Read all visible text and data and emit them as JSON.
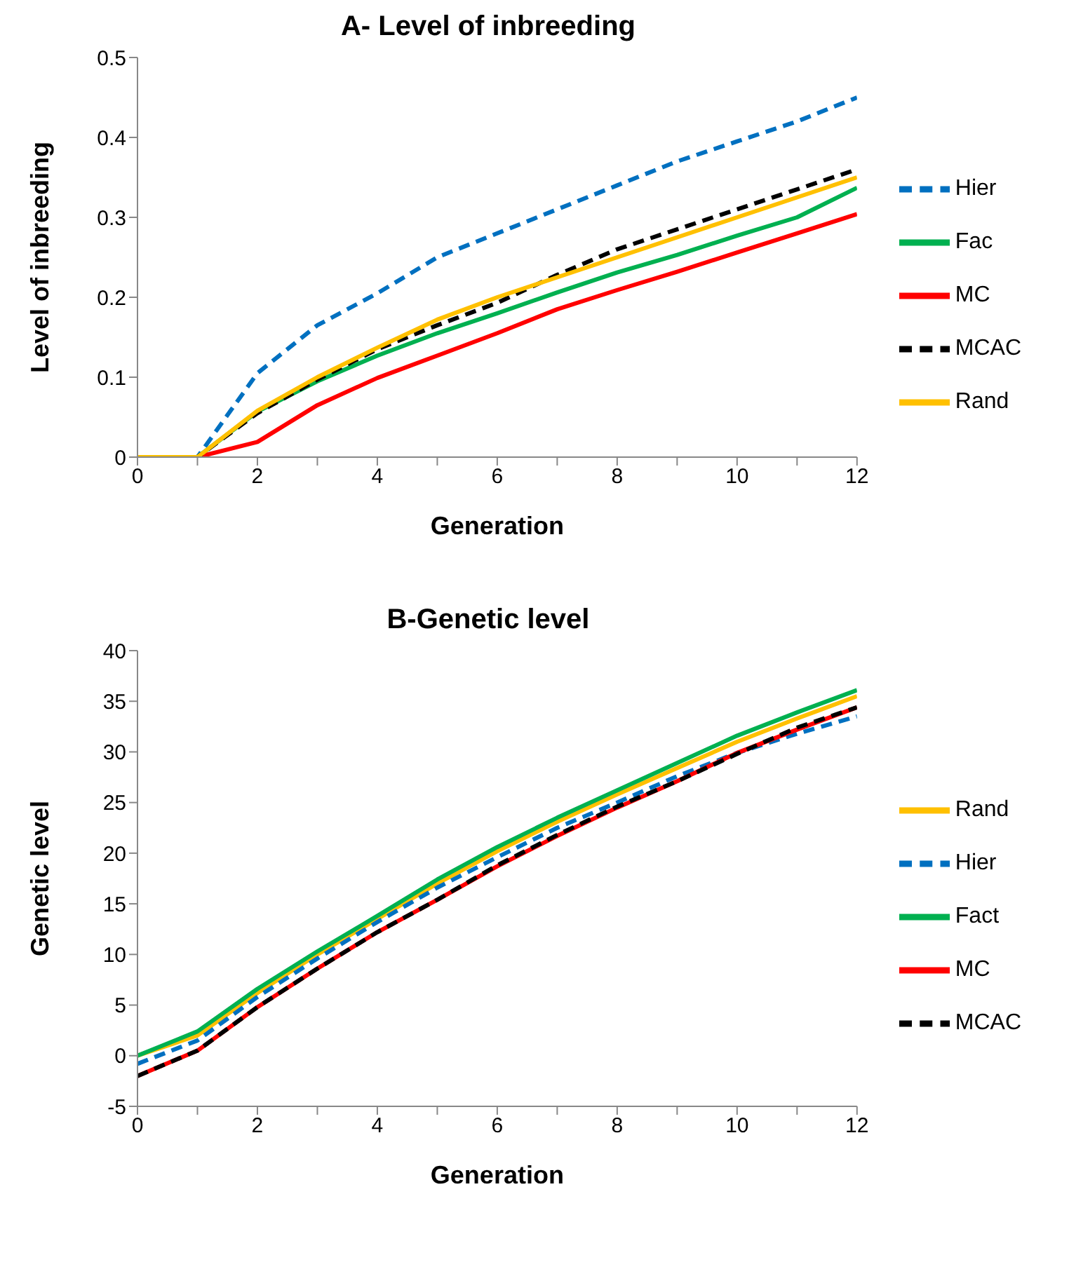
{
  "chart_data": [
    {
      "type": "line",
      "title": "A- Level of inbreeding",
      "xlabel": "Generation",
      "ylabel": "Level of inbreeding",
      "x": [
        0,
        1,
        2,
        3,
        4,
        5,
        6,
        7,
        8,
        9,
        10,
        11,
        12
      ],
      "xlim": [
        0,
        12
      ],
      "xticks": [
        0,
        {
          "value": 1,
          "label": null
        },
        2,
        {
          "value": 3,
          "label": null
        },
        4,
        {
          "value": 5,
          "label": null
        },
        6,
        {
          "value": 7,
          "label": null
        },
        8,
        {
          "value": 9,
          "label": null
        },
        10,
        {
          "value": 11,
          "label": null
        },
        12
      ],
      "ylim": [
        0,
        0.5
      ],
      "yticks": [
        0,
        0.1,
        0.2,
        0.3,
        0.4,
        0.5
      ],
      "grid": false,
      "legend": "right",
      "marker": "none",
      "series": [
        {
          "name": "Hier",
          "color": "#0070c0",
          "line_style": "dashed",
          "values": [
            0,
            0,
            0.105,
            0.165,
            0.205,
            0.25,
            0.28,
            0.31,
            0.34,
            0.37,
            0.395,
            0.42,
            0.45
          ]
        },
        {
          "name": "Fac",
          "color": "#00b050",
          "line_style": "solid",
          "values": [
            0,
            0,
            0.057,
            0.095,
            0.127,
            0.155,
            0.18,
            0.206,
            0.231,
            0.253,
            0.277,
            0.3,
            0.337
          ]
        },
        {
          "name": "MC",
          "color": "#ff0000",
          "line_style": "solid",
          "values": [
            0,
            0,
            0.019,
            0.065,
            0.099,
            0.127,
            0.155,
            0.185,
            0.209,
            0.232,
            0.256,
            0.28,
            0.304
          ]
        },
        {
          "name": "MCAC",
          "color": "#000000",
          "line_style": "dashed",
          "values": [
            0,
            0,
            0.055,
            0.097,
            0.135,
            0.165,
            0.193,
            0.228,
            0.26,
            0.285,
            0.31,
            0.335,
            0.36
          ]
        },
        {
          "name": "Rand",
          "color": "#ffc000",
          "line_style": "solid",
          "values": [
            0,
            0,
            0.058,
            0.1,
            0.137,
            0.172,
            0.2,
            0.225,
            0.25,
            0.275,
            0.3,
            0.325,
            0.35
          ]
        }
      ]
    },
    {
      "type": "line",
      "title": "B-Genetic level",
      "xlabel": "Generation",
      "ylabel": "Genetic level",
      "x": [
        0,
        1,
        2,
        3,
        4,
        5,
        6,
        7,
        8,
        9,
        10,
        11,
        12
      ],
      "xlim": [
        0,
        12
      ],
      "xticks": [
        0,
        {
          "value": 1,
          "label": null
        },
        2,
        {
          "value": 3,
          "label": null
        },
        4,
        {
          "value": 5,
          "label": null
        },
        6,
        {
          "value": 7,
          "label": null
        },
        8,
        {
          "value": 9,
          "label": null
        },
        10,
        {
          "value": 11,
          "label": null
        },
        12
      ],
      "ylim": [
        -5,
        40
      ],
      "yticks": [
        -5,
        0,
        5,
        10,
        15,
        20,
        25,
        30,
        35,
        40
      ],
      "grid": false,
      "legend": "right",
      "marker": "none",
      "series": [
        {
          "name": "Rand",
          "color": "#ffc000",
          "line_style": "solid",
          "values": [
            0,
            2,
            6.2,
            10,
            13.5,
            17,
            20.2,
            23.1,
            25.8,
            28.4,
            31,
            33.3,
            35.5
          ]
        },
        {
          "name": "Hier",
          "color": "#0070c0",
          "line_style": "dashed",
          "values": [
            -0.8,
            1.5,
            5.8,
            9.6,
            13.2,
            16.6,
            19.6,
            22.5,
            25,
            27.6,
            29.9,
            31.8,
            33.5
          ]
        },
        {
          "name": "Fact",
          "color": "#00b050",
          "line_style": "solid",
          "values": [
            0,
            2.4,
            6.6,
            10.3,
            13.8,
            17.4,
            20.6,
            23.5,
            26.2,
            28.9,
            31.6,
            33.9,
            36.1
          ]
        },
        {
          "name": "MC",
          "color": "#ff0000",
          "line_style": "solid",
          "values": [
            -2,
            0.5,
            4.8,
            8.6,
            12.2,
            15.4,
            18.7,
            21.7,
            24.5,
            27.1,
            29.9,
            32.2,
            34.4
          ]
        },
        {
          "name": "MCAC",
          "color": "#000000",
          "line_style": "dashed",
          "values": [
            -2,
            0.5,
            4.8,
            8.6,
            12.2,
            15.4,
            18.8,
            21.8,
            24.6,
            27.1,
            29.8,
            32.4,
            34.4
          ]
        }
      ]
    }
  ]
}
